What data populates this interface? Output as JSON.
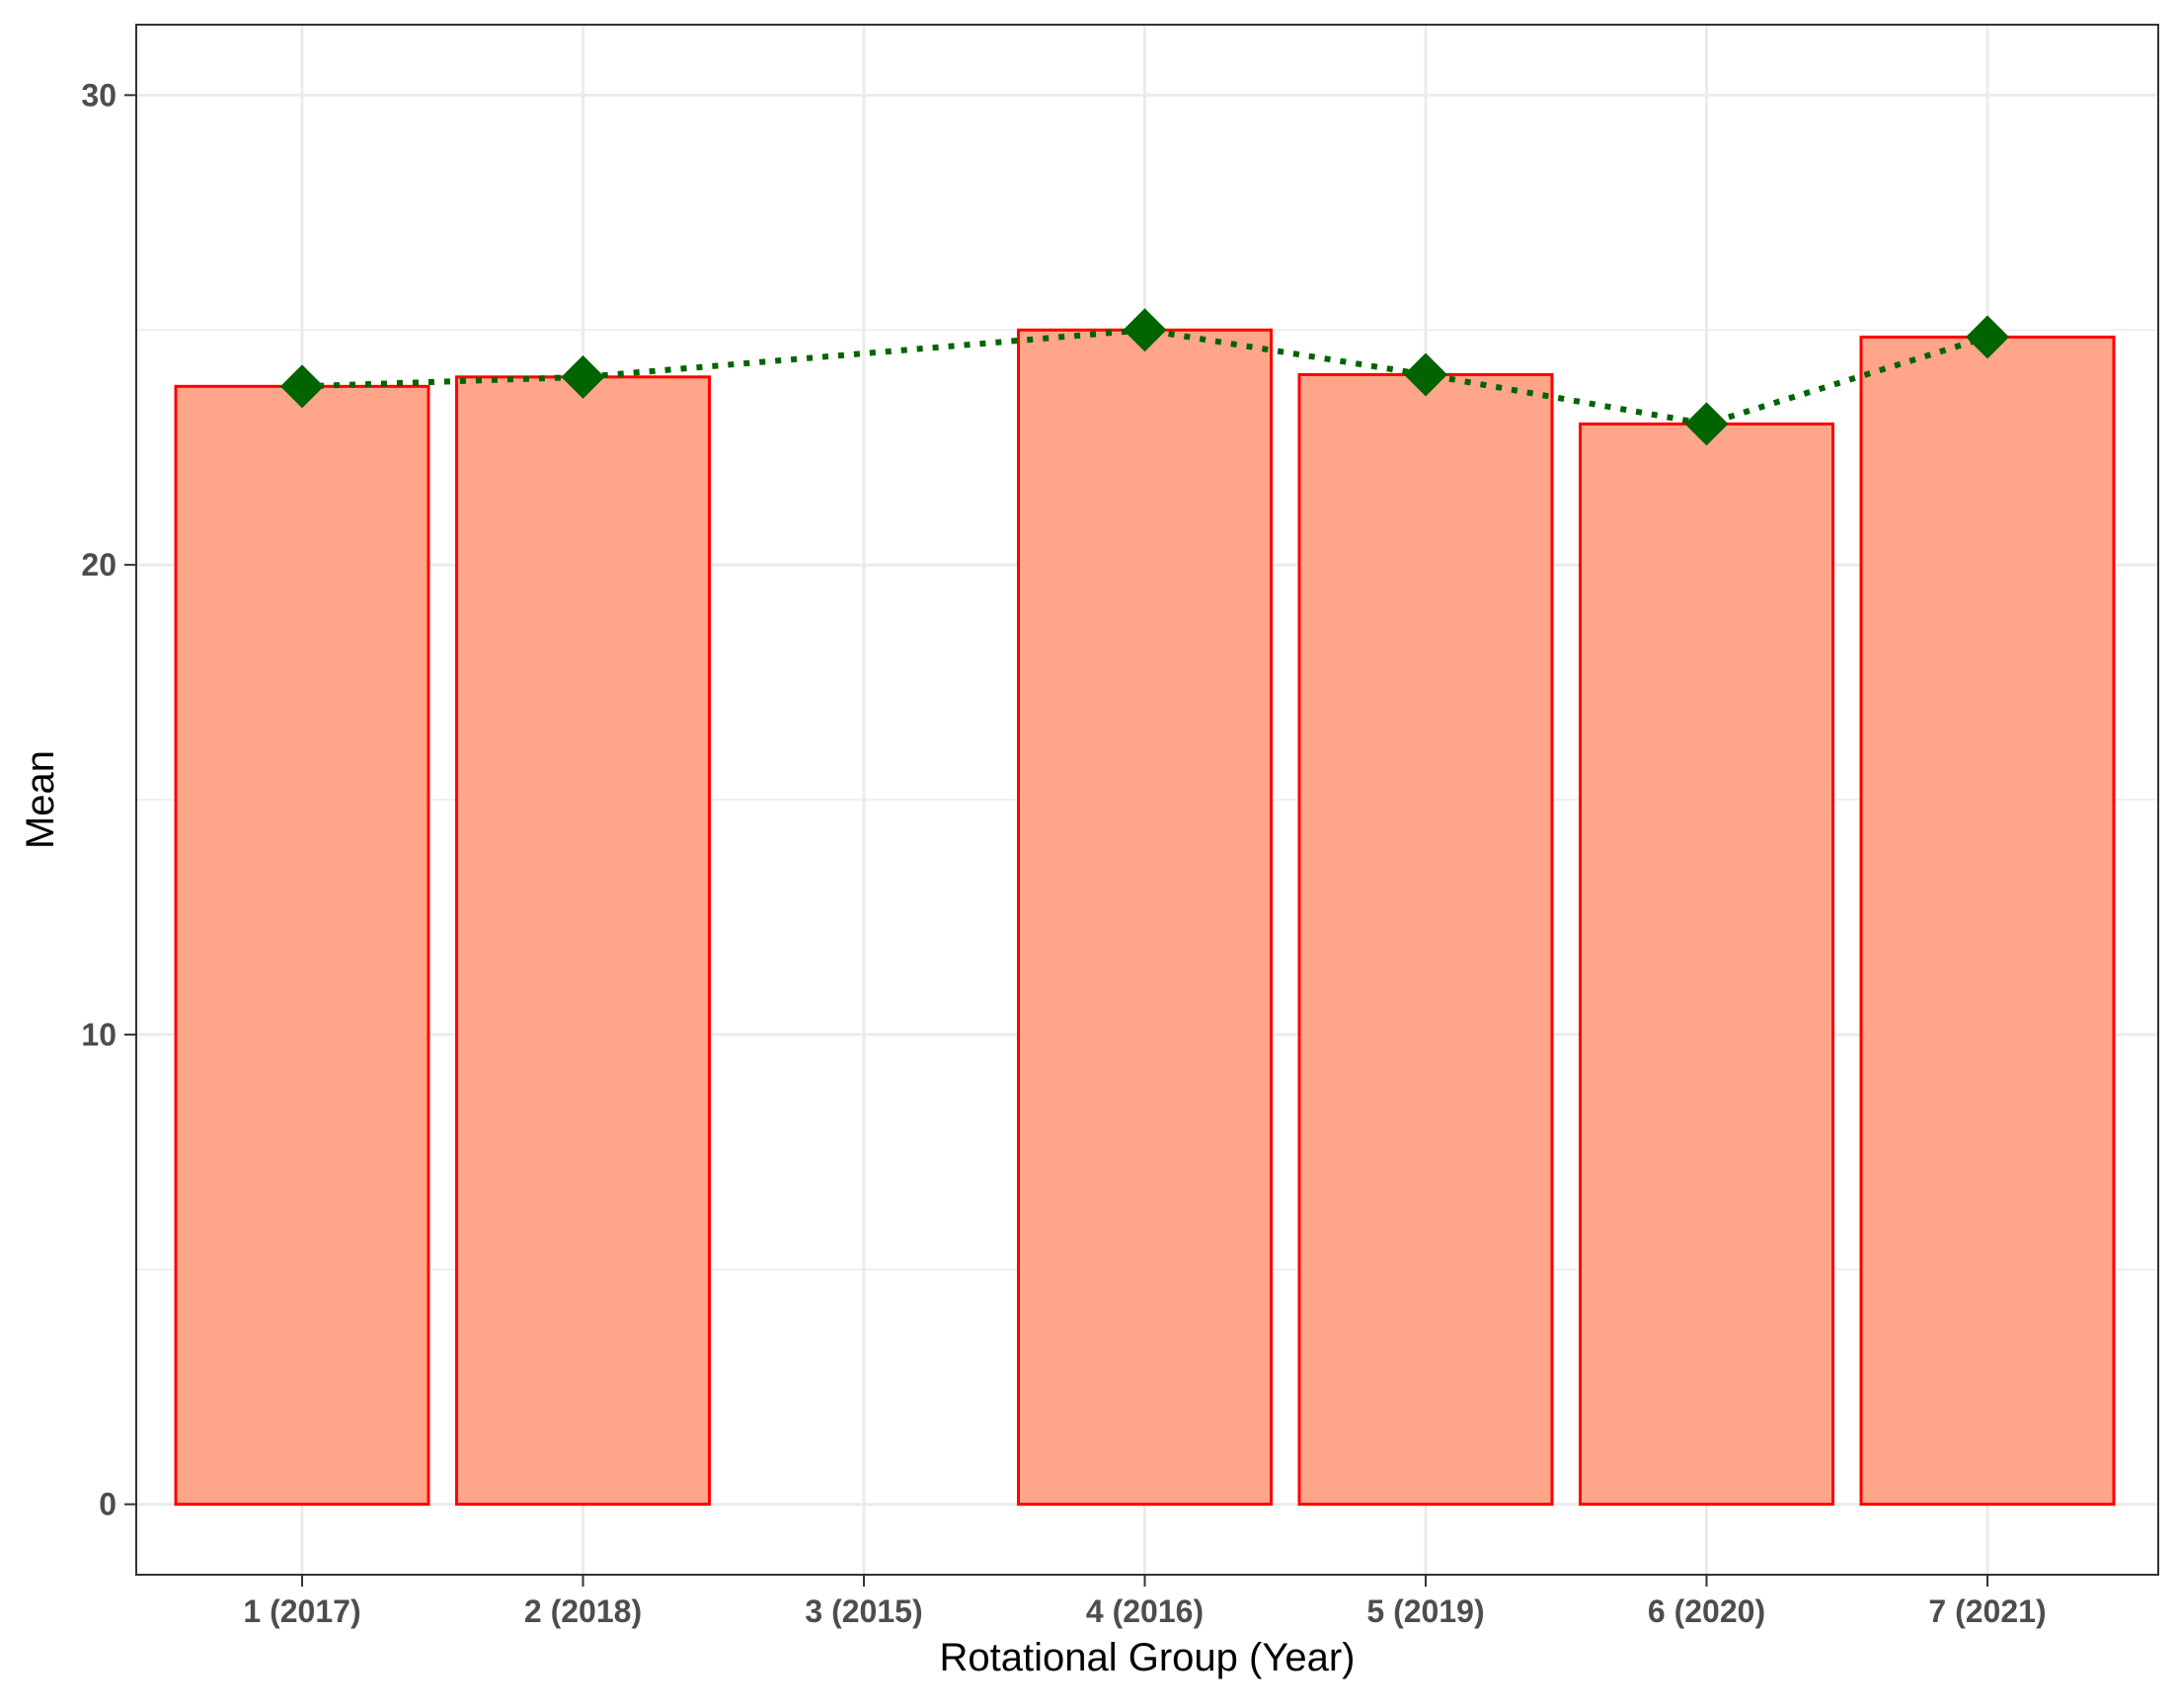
{
  "chart_data": {
    "type": "bar",
    "title": "",
    "xlabel": "Rotational Group (Year)",
    "ylabel": "Mean",
    "categories": [
      "1 (2017)",
      "2 (2018)",
      "3 (2015)",
      "4 (2016)",
      "5 (2019)",
      "6 (2020)",
      "7 (2021)"
    ],
    "values": [
      23.8,
      24.0,
      null,
      25.0,
      24.05,
      23.0,
      24.85
    ],
    "line_values": [
      23.8,
      24.0,
      null,
      25.0,
      24.05,
      23.0,
      24.85
    ],
    "ylim": [
      -1.5,
      31.5
    ],
    "yticks": [
      0,
      10,
      20,
      30
    ],
    "grid": true,
    "legend": "none",
    "colors": {
      "bar_fill": "#ffa589",
      "bar_stroke": "#ff0000",
      "line": "#006400",
      "marker": "#006400",
      "grid": "#ebebeb",
      "panel_border": "#333333"
    }
  }
}
